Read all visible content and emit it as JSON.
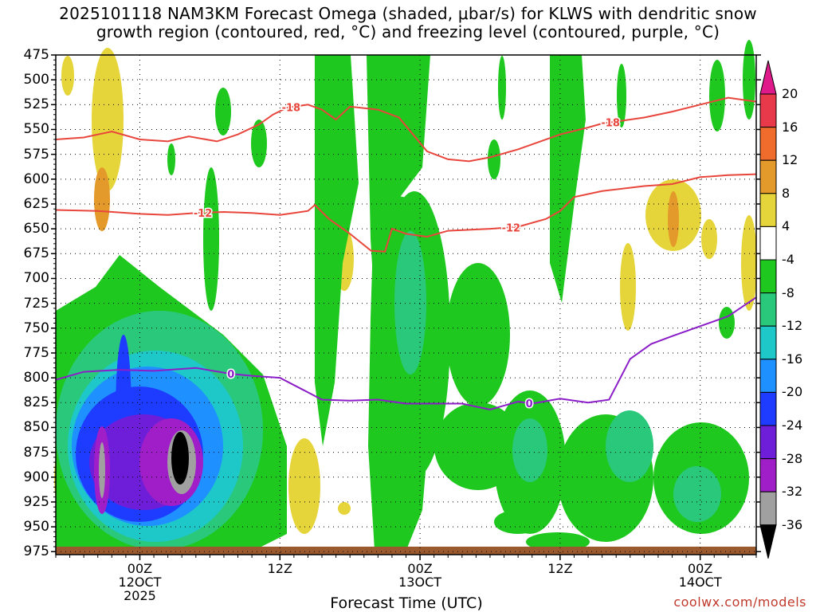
{
  "chart_data": {
    "type": "heatmap",
    "title_line1": "2025101118 NAM3KM Forecast Omega (shaded, μbar/s) for KLWS with dendritic snow",
    "title_line2": "growth region (contoured, red, °C) and freezing level (contoured, purple, °C)",
    "xlabel": "Forecast Time (UTC)",
    "credit": "coolwx.com/models",
    "y_axis": {
      "label": "Pressure (mb)",
      "ticks": [
        475,
        500,
        525,
        550,
        575,
        600,
        625,
        650,
        675,
        700,
        725,
        750,
        775,
        800,
        825,
        850,
        875,
        900,
        925,
        950,
        975
      ],
      "range": [
        475,
        978
      ]
    },
    "x_axis": {
      "range_hours": [
        -6,
        44
      ],
      "ticks": [
        {
          "hour": 0,
          "line1": "00Z",
          "line2": "12OCT",
          "line3": "2025"
        },
        {
          "hour": 10,
          "line1": "12Z",
          "line2": "",
          "line3": ""
        },
        {
          "hour": 20,
          "line1": "00Z",
          "line2": "13OCT",
          "line3": ""
        },
        {
          "hour": 30,
          "line1": "12Z",
          "line2": "",
          "line3": ""
        },
        {
          "hour": 40,
          "line1": "00Z",
          "line2": "14OCT",
          "line3": ""
        }
      ]
    },
    "colorbar": {
      "labels": [
        "20",
        "16",
        "12",
        "8",
        "4",
        "-4",
        "-8",
        "-12",
        "-16",
        "-20",
        "-24",
        "-28",
        "-32",
        "-36"
      ],
      "bins": [
        {
          "from": 16,
          "to": 20,
          "color": "#e8394a"
        },
        {
          "from": 12,
          "to": 16,
          "color": "#ef6c2c"
        },
        {
          "from": 8,
          "to": 12,
          "color": "#e39a2a"
        },
        {
          "from": 4,
          "to": 8,
          "color": "#e6d53a"
        },
        {
          "from": -4,
          "to": 4,
          "color": "#ffffff"
        },
        {
          "from": -8,
          "to": -4,
          "color": "#1ec81e"
        },
        {
          "from": -12,
          "to": -8,
          "color": "#2ac87a"
        },
        {
          "from": -16,
          "to": -12,
          "color": "#1ec8c8"
        },
        {
          "from": -20,
          "to": -16,
          "color": "#1e90ff"
        },
        {
          "from": -24,
          "to": -20,
          "color": "#1e3cff"
        },
        {
          "from": -28,
          "to": -24,
          "color": "#6e1ed8"
        },
        {
          "from": -32,
          "to": -28,
          "color": "#a01ec8"
        },
        {
          "from": -36,
          "to": -32,
          "color": "#a0a0a0"
        }
      ],
      "top_color": "#e0198a",
      "bottom_color": "#000000"
    },
    "contours": {
      "dgz_minus18": {
        "label": "-18",
        "color": "#e8463c",
        "points": [
          [
            -6,
            560
          ],
          [
            -4,
            558
          ],
          [
            -2,
            552
          ],
          [
            0,
            560
          ],
          [
            2,
            562
          ],
          [
            3.5,
            557
          ],
          [
            5.5,
            562
          ],
          [
            7,
            555
          ],
          [
            8.5,
            545
          ],
          [
            9.5,
            535
          ],
          [
            10.5,
            528
          ],
          [
            12,
            525
          ],
          [
            13,
            530
          ],
          [
            14,
            540
          ],
          [
            15,
            527
          ],
          [
            17,
            530
          ],
          [
            18.5,
            538
          ],
          [
            19.5,
            555
          ],
          [
            20.5,
            572
          ],
          [
            22,
            580
          ],
          [
            23.5,
            582
          ],
          [
            25,
            578
          ],
          [
            27,
            570
          ],
          [
            30,
            555
          ],
          [
            32,
            548
          ],
          [
            33,
            544
          ],
          [
            34,
            542
          ],
          [
            36,
            538
          ],
          [
            38,
            532
          ],
          [
            40,
            525
          ],
          [
            42,
            518
          ],
          [
            44,
            522
          ]
        ],
        "label_at_hours": [
          10.8,
          33.6
        ]
      },
      "dgz_minus12": {
        "label": "-12",
        "color": "#e8463c",
        "points": [
          [
            -6,
            631
          ],
          [
            -3,
            632
          ],
          [
            0,
            635
          ],
          [
            2,
            636
          ],
          [
            4,
            634
          ],
          [
            6,
            633
          ],
          [
            8,
            634
          ],
          [
            10,
            636
          ],
          [
            12,
            632
          ],
          [
            12.5,
            626
          ],
          [
            13.5,
            640
          ],
          [
            15,
            655
          ],
          [
            16.5,
            672
          ],
          [
            17.5,
            673
          ],
          [
            18,
            650
          ],
          [
            19,
            655
          ],
          [
            20.5,
            658
          ],
          [
            22,
            652
          ],
          [
            25,
            650
          ],
          [
            27,
            648
          ],
          [
            29,
            640
          ],
          [
            30,
            632
          ],
          [
            31,
            618
          ],
          [
            33,
            612
          ],
          [
            36,
            607
          ],
          [
            38,
            605
          ],
          [
            40,
            598
          ],
          [
            42,
            596
          ],
          [
            44,
            595
          ]
        ],
        "label_at_hours": [
          4.5,
          26.5
        ]
      },
      "freezing_level": {
        "label": "0",
        "color": "#8b1ec8",
        "points": [
          [
            -6,
            802
          ],
          [
            -4,
            794
          ],
          [
            -1.5,
            792
          ],
          [
            1,
            793
          ],
          [
            4,
            790
          ],
          [
            6.5,
            796
          ],
          [
            8,
            798
          ],
          [
            10,
            800
          ],
          [
            13,
            822
          ],
          [
            15,
            823
          ],
          [
            17,
            822
          ],
          [
            19,
            826
          ],
          [
            21,
            826
          ],
          [
            23,
            826
          ],
          [
            25,
            832
          ],
          [
            27,
            824
          ],
          [
            28,
            826
          ],
          [
            30,
            821
          ],
          [
            32,
            825
          ],
          [
            33.5,
            822
          ],
          [
            35,
            781
          ],
          [
            36.5,
            766
          ],
          [
            38,
            758
          ],
          [
            40,
            748
          ],
          [
            42,
            738
          ],
          [
            44,
            719
          ]
        ],
        "label_at_hours": [
          6.5,
          27.8
        ]
      }
    },
    "omega_regions_description": "Shaded omega field: strongest upward motion (gray/black < -32) near 850-900 mb around 03Z 12OCT; downward motion (orange) at 850-900 mb before 00Z 12OCT and around 22Z 12OCT."
  }
}
